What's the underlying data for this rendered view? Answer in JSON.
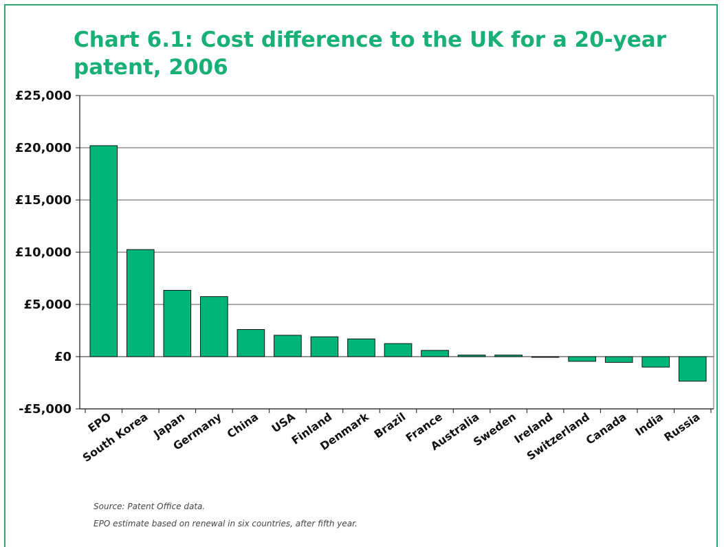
{
  "chart_data": {
    "type": "bar",
    "title": "Chart 6.1: Cost difference to the UK for a 20-year patent, 2006",
    "xlabel": "",
    "ylabel": "",
    "categories": [
      "EPO",
      "South Korea",
      "Japan",
      "Germany",
      "China",
      "USA",
      "Finland",
      "Denmark",
      "Brazil",
      "France",
      "Australia",
      "Sweden",
      "Ireland",
      "Switzerland",
      "Canada",
      "India",
      "Russia"
    ],
    "values": [
      20200,
      10250,
      6350,
      5750,
      2600,
      2050,
      1900,
      1700,
      1250,
      600,
      150,
      150,
      -50,
      -450,
      -550,
      -1000,
      -2350
    ],
    "ylim": [
      -5000,
      25000
    ],
    "yticks": [
      -5000,
      0,
      5000,
      10000,
      15000,
      20000,
      25000
    ],
    "ytick_labels": [
      "-£5,000",
      "£0",
      "£5,000",
      "£10,000",
      "£15,000",
      "£20,000",
      "£25,000"
    ],
    "grid": true,
    "bar_color": "#00b47a",
    "legend": "none"
  },
  "notes": {
    "source": "Source: Patent Office data.",
    "footnote": "EPO estimate based on renewal in six countries, after fifth year."
  },
  "colors": {
    "title": "#19b077",
    "frame": "#2aa772"
  }
}
